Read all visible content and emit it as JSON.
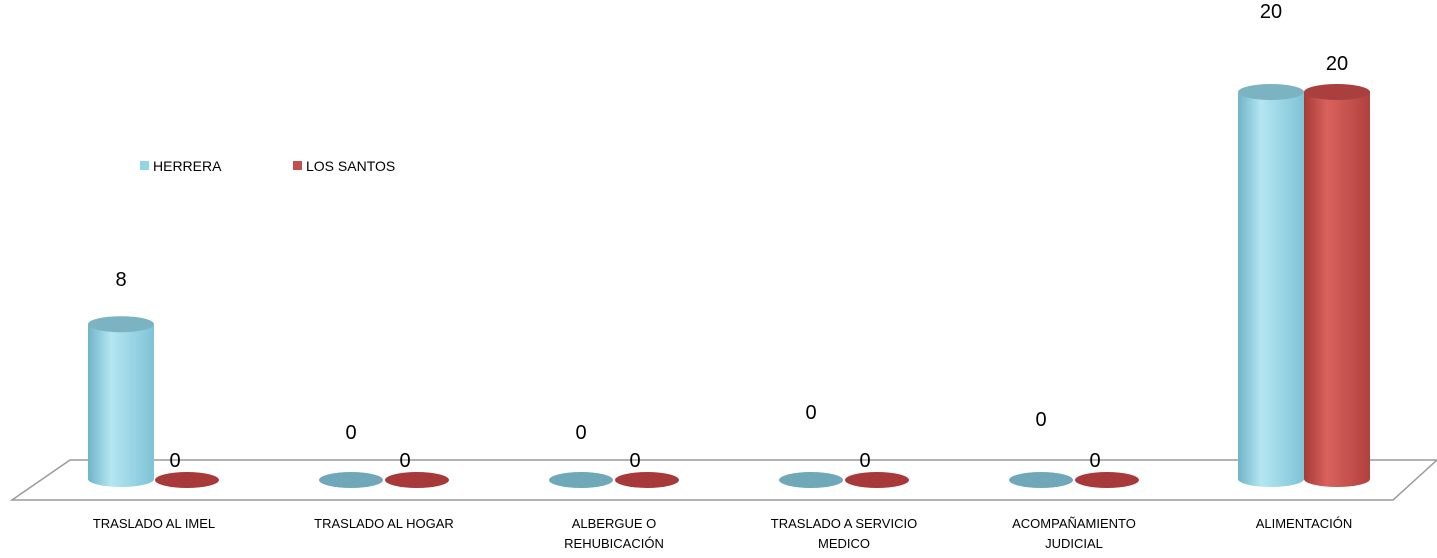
{
  "chart_data": {
    "type": "bar",
    "style": "3d-cylinder",
    "categories": [
      [
        "TRASLADO AL IMEL"
      ],
      [
        "TRASLADO AL HOGAR"
      ],
      [
        "ALBERGUE O",
        "REHUBICACIÓN"
      ],
      [
        "TRASLADO A SERVICIO",
        "MEDICO"
      ],
      [
        "ACOMPAÑAMIENTO",
        "JUDICIAL"
      ],
      [
        "ALIMENTACIÓN"
      ]
    ],
    "series": [
      {
        "name": "HERRERA",
        "values": [
          8,
          0,
          0,
          0,
          0,
          20
        ],
        "color": "#92D5E6"
      },
      {
        "name": "LOS SANTOS",
        "values": [
          0,
          0,
          0,
          0,
          0,
          20
        ],
        "color": "#C0504D"
      }
    ],
    "ylim": [
      0,
      20
    ],
    "legend": "top-left",
    "grid": false
  }
}
